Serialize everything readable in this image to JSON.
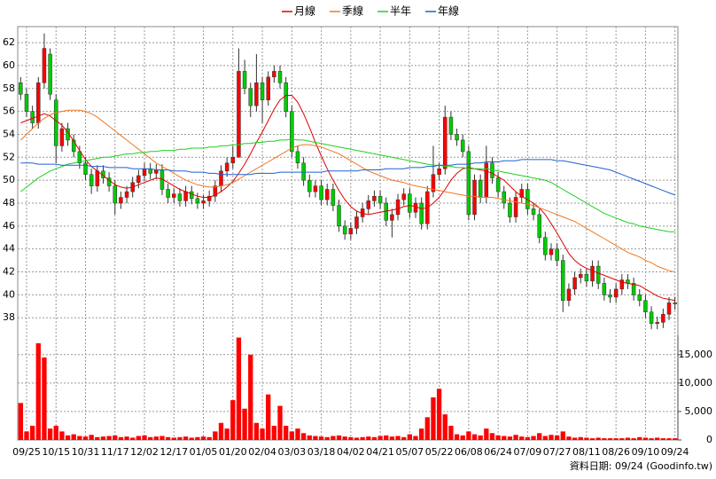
{
  "chart_data": {
    "type": "candlestick",
    "categories": [
      null,
      "09/25",
      null,
      null,
      null,
      null,
      "10/15",
      null,
      null,
      null,
      null,
      "10/31",
      null,
      null,
      null,
      null,
      "11/17",
      null,
      null,
      null,
      null,
      "12/02",
      null,
      null,
      null,
      null,
      "12/17",
      null,
      null,
      null,
      null,
      "01/05",
      null,
      null,
      null,
      null,
      "01/20",
      null,
      null,
      null,
      null,
      "02/04",
      null,
      null,
      null,
      null,
      "03/03",
      null,
      null,
      null,
      null,
      "03/18",
      null,
      null,
      null,
      null,
      "04/02",
      null,
      null,
      null,
      null,
      "04/21",
      null,
      null,
      null,
      null,
      "05/07",
      null,
      null,
      null,
      null,
      "05/22",
      null,
      null,
      null,
      null,
      "06/08",
      null,
      null,
      null,
      null,
      "06/24",
      null,
      null,
      null,
      null,
      "07/09",
      null,
      null,
      null,
      null,
      "07/27",
      null,
      null,
      null,
      null,
      "08/11",
      null,
      null,
      null,
      null,
      "08/26",
      null,
      null,
      null,
      null,
      "09/10",
      null,
      null,
      null,
      null,
      "09/24"
    ],
    "open": [
      58.5,
      57.5,
      56.0,
      55.0,
      58.5,
      61.0,
      57.0,
      53.0,
      54.5,
      53.5,
      52.5,
      51.5,
      50.5,
      49.5,
      50.8,
      50.2,
      49.5,
      48.0,
      48.5,
      49.0,
      49.8,
      50.4,
      51.0,
      50.6,
      50.9,
      49.2,
      48.5,
      48.8,
      48.2,
      49.0,
      48.4,
      48.0,
      48.2,
      48.6,
      49.5,
      50.8,
      51.5,
      52.0,
      59.5,
      58.0,
      56.5,
      58.5,
      57.0,
      59.0,
      59.5,
      58.5,
      56.0,
      52.5,
      51.5,
      50.0,
      49.0,
      49.5,
      48.3,
      49.2,
      47.8,
      46.0,
      45.3,
      45.8,
      46.8,
      47.5,
      48.2,
      48.6,
      48.0,
      46.5,
      47.0,
      48.3,
      48.8,
      47.2,
      48.0,
      46.2,
      49.0,
      50.5,
      51.0,
      55.5,
      54.0,
      53.5,
      52.5,
      47.0,
      50.0,
      48.5,
      51.5,
      50.2,
      49.0,
      48.0,
      46.8,
      48.5,
      49.2,
      47.5,
      47.0,
      45.0,
      43.5,
      44.0,
      43.0,
      39.5,
      40.5,
      41.5,
      41.8,
      41.2,
      42.5,
      41.0,
      40.0,
      39.8,
      40.5,
      41.3,
      41.0,
      40.0,
      39.5,
      38.5,
      37.5,
      37.6,
      38.3,
      39.3
    ],
    "high": [
      59.0,
      58.0,
      56.5,
      59.0,
      62.8,
      61.5,
      57.5,
      55.0,
      55.0,
      54.0,
      53.0,
      52.0,
      51.0,
      51.3,
      51.3,
      50.7,
      50.0,
      49.0,
      49.5,
      50.3,
      50.9,
      51.5,
      51.5,
      51.4,
      51.4,
      49.7,
      49.3,
      49.3,
      49.5,
      49.5,
      48.9,
      48.7,
      49.1,
      50.0,
      51.3,
      52.0,
      53.0,
      61.5,
      60.5,
      58.5,
      61.0,
      59.0,
      59.5,
      60.0,
      60.0,
      59.0,
      56.5,
      53.0,
      52.0,
      50.5,
      50.0,
      50.0,
      49.7,
      49.7,
      48.3,
      46.5,
      46.3,
      47.3,
      48.0,
      48.7,
      49.1,
      49.1,
      48.5,
      47.5,
      48.8,
      49.3,
      49.3,
      48.5,
      48.5,
      49.5,
      53.0,
      51.5,
      56.5,
      56.0,
      54.5,
      54.0,
      53.0,
      50.5,
      50.5,
      53.0,
      52.0,
      50.7,
      49.5,
      48.5,
      49.0,
      49.7,
      49.7,
      48.0,
      47.5,
      45.5,
      44.5,
      44.5,
      43.5,
      41.0,
      42.0,
      42.3,
      42.3,
      43.0,
      43.0,
      41.5,
      40.5,
      41.0,
      41.8,
      41.8,
      41.5,
      40.5,
      40.0,
      39.0,
      38.1,
      38.8,
      39.8,
      39.8
    ],
    "low": [
      57.0,
      55.5,
      54.5,
      54.5,
      58.0,
      57.0,
      51.5,
      52.5,
      53.0,
      52.0,
      51.0,
      50.0,
      48.8,
      49.0,
      49.7,
      49.0,
      47.0,
      47.5,
      48.0,
      48.5,
      49.3,
      49.9,
      50.1,
      50.1,
      48.7,
      48.0,
      48.0,
      47.7,
      47.7,
      47.9,
      47.5,
      47.5,
      47.7,
      48.1,
      49.0,
      50.3,
      51.0,
      52.0,
      57.5,
      55.5,
      56.0,
      55.0,
      56.5,
      58.5,
      58.0,
      55.5,
      52.0,
      51.0,
      49.5,
      48.5,
      48.5,
      47.8,
      47.8,
      47.3,
      45.5,
      44.8,
      44.8,
      45.3,
      46.3,
      47.0,
      47.7,
      47.5,
      46.0,
      45.0,
      46.5,
      47.8,
      46.7,
      46.7,
      45.7,
      45.7,
      48.5,
      50.0,
      50.5,
      53.5,
      53.0,
      52.0,
      46.5,
      46.5,
      48.0,
      48.0,
      49.7,
      48.5,
      47.5,
      46.3,
      46.3,
      48.0,
      47.0,
      46.5,
      44.5,
      43.0,
      43.0,
      42.5,
      38.5,
      39.0,
      40.0,
      41.0,
      40.7,
      40.7,
      40.5,
      39.5,
      39.3,
      39.3,
      40.0,
      40.5,
      39.5,
      39.0,
      38.0,
      37.0,
      37.0,
      37.1,
      37.8,
      38.7
    ],
    "close": [
      57.5,
      56.0,
      55.0,
      58.5,
      61.5,
      57.5,
      53.0,
      54.5,
      53.5,
      52.5,
      51.5,
      50.5,
      49.5,
      50.8,
      50.2,
      49.5,
      48.0,
      48.5,
      49.0,
      49.8,
      50.4,
      51.0,
      50.6,
      50.9,
      49.2,
      48.5,
      48.8,
      48.2,
      49.0,
      48.4,
      48.0,
      48.2,
      48.6,
      49.5,
      50.8,
      51.5,
      52.0,
      59.5,
      58.0,
      56.5,
      58.5,
      57.0,
      59.0,
      59.5,
      58.5,
      56.0,
      52.5,
      51.5,
      50.0,
      49.0,
      49.5,
      48.3,
      49.2,
      47.8,
      46.0,
      45.3,
      45.8,
      46.8,
      47.5,
      48.2,
      48.6,
      48.0,
      46.5,
      47.0,
      48.3,
      48.8,
      47.2,
      48.0,
      46.2,
      49.0,
      50.5,
      51.0,
      55.5,
      54.0,
      53.5,
      52.5,
      47.0,
      50.0,
      48.5,
      51.5,
      50.2,
      49.0,
      48.0,
      46.8,
      48.5,
      49.2,
      47.5,
      47.0,
      45.0,
      43.5,
      44.0,
      43.0,
      39.5,
      40.5,
      41.5,
      41.8,
      41.2,
      42.5,
      41.0,
      40.0,
      39.8,
      40.5,
      41.3,
      41.0,
      40.0,
      39.5,
      38.5,
      37.5,
      37.6,
      38.3,
      39.3,
      39.2
    ],
    "up_color": "#ff0000",
    "down_color": "#00cc00",
    "wick_color": "#333333",
    "ylim": [
      36.7,
      63.4
    ],
    "yticks": [
      38,
      40,
      42,
      44,
      46,
      48,
      50,
      52,
      54,
      56,
      58,
      60,
      62
    ],
    "grid": true,
    "series": [
      {
        "name": "月線",
        "color": "#e00000",
        "values": [
          55.0,
          55.2,
          55.4,
          55.6,
          55.8,
          55.6,
          55.2,
          54.8,
          54.2,
          53.4,
          52.6,
          51.8,
          51.2,
          50.8,
          50.4,
          50.0,
          49.6,
          49.4,
          49.3,
          49.4,
          49.6,
          49.8,
          50.0,
          50.2,
          50.1,
          49.8,
          49.5,
          49.2,
          49.0,
          48.8,
          48.6,
          48.5,
          48.5,
          48.7,
          49.0,
          49.4,
          49.9,
          50.6,
          51.4,
          52.3,
          53.3,
          54.2,
          55.2,
          56.2,
          57.0,
          57.4,
          57.4,
          56.8,
          55.8,
          54.6,
          53.3,
          52.1,
          51.0,
          50.0,
          49.1,
          48.3,
          47.7,
          47.3,
          47.1,
          47.0,
          47.1,
          47.2,
          47.3,
          47.4,
          47.5,
          47.7,
          47.8,
          47.7,
          47.5,
          47.6,
          48.0,
          48.5,
          49.2,
          50.0,
          50.6,
          51.0,
          51.1,
          51.0,
          50.9,
          50.8,
          50.6,
          50.3,
          50.0,
          49.5,
          49.0,
          48.6,
          48.3,
          48.0,
          47.6,
          47.0,
          46.2,
          45.4,
          44.5,
          43.6,
          43.0,
          42.6,
          42.3,
          42.1,
          41.9,
          41.7,
          41.5,
          41.3,
          41.1,
          41.0,
          40.9,
          40.8,
          40.5,
          40.2,
          39.9,
          39.7,
          39.6,
          39.5
        ]
      },
      {
        "name": "季線",
        "color": "#f07820",
        "values": [
          53.5,
          54.0,
          54.5,
          55.0,
          55.4,
          55.7,
          55.9,
          56.0,
          56.1,
          56.1,
          56.1,
          56.0,
          55.8,
          55.5,
          55.1,
          54.7,
          54.3,
          53.9,
          53.5,
          53.1,
          52.7,
          52.3,
          51.9,
          51.5,
          51.2,
          50.9,
          50.6,
          50.3,
          50.0,
          49.8,
          49.6,
          49.5,
          49.4,
          49.4,
          49.5,
          49.6,
          49.8,
          50.1,
          50.4,
          50.7,
          51.0,
          51.3,
          51.6,
          51.9,
          52.2,
          52.5,
          52.8,
          53.0,
          53.1,
          53.1,
          53.0,
          52.9,
          52.7,
          52.5,
          52.3,
          52.0,
          51.7,
          51.4,
          51.1,
          50.8,
          50.6,
          50.4,
          50.2,
          50.0,
          49.9,
          49.8,
          49.6,
          49.5,
          49.4,
          49.3,
          49.2,
          49.1,
          49.0,
          48.9,
          48.8,
          48.7,
          48.6,
          48.6,
          48.5,
          48.5,
          48.5,
          48.4,
          48.3,
          48.2,
          48.1,
          48.0,
          47.9,
          47.8,
          47.6,
          47.4,
          47.2,
          47.0,
          46.8,
          46.6,
          46.4,
          46.1,
          45.8,
          45.5,
          45.2,
          44.9,
          44.6,
          44.3,
          44.0,
          43.7,
          43.5,
          43.3,
          43.0,
          42.8,
          42.5,
          42.3,
          42.1,
          42.0
        ]
      },
      {
        "name": "半年",
        "color": "#20d020",
        "values": [
          49.0,
          49.4,
          49.8,
          50.2,
          50.5,
          50.8,
          51.0,
          51.2,
          51.4,
          51.5,
          51.6,
          51.7,
          51.8,
          51.9,
          52.0,
          52.0,
          52.1,
          52.2,
          52.3,
          52.3,
          52.4,
          52.4,
          52.5,
          52.5,
          52.6,
          52.6,
          52.6,
          52.7,
          52.7,
          52.8,
          52.8,
          52.8,
          52.9,
          52.9,
          53.0,
          53.0,
          53.1,
          53.1,
          53.2,
          53.2,
          53.3,
          53.3,
          53.4,
          53.4,
          53.5,
          53.5,
          53.6,
          53.5,
          53.5,
          53.4,
          53.3,
          53.2,
          53.1,
          53.0,
          52.9,
          52.8,
          52.7,
          52.6,
          52.5,
          52.4,
          52.3,
          52.2,
          52.1,
          52.0,
          51.9,
          51.8,
          51.7,
          51.6,
          51.5,
          51.4,
          51.3,
          51.3,
          51.2,
          51.2,
          51.1,
          51.1,
          51.0,
          51.0,
          51.0,
          51.0,
          50.9,
          50.8,
          50.7,
          50.6,
          50.5,
          50.4,
          50.3,
          50.2,
          50.1,
          50.0,
          49.8,
          49.5,
          49.2,
          48.9,
          48.6,
          48.3,
          48.0,
          47.7,
          47.4,
          47.1,
          46.9,
          46.7,
          46.5,
          46.3,
          46.2,
          46.0,
          45.9,
          45.8,
          45.7,
          45.6,
          45.5,
          45.5
        ]
      },
      {
        "name": "年線",
        "color": "#2060d0",
        "values": [
          51.5,
          51.5,
          51.5,
          51.4,
          51.4,
          51.4,
          51.4,
          51.3,
          51.3,
          51.3,
          51.3,
          51.3,
          51.2,
          51.2,
          51.2,
          51.1,
          51.1,
          51.1,
          51.1,
          51.0,
          51.0,
          51.0,
          51.0,
          50.9,
          50.9,
          50.9,
          50.8,
          50.8,
          50.8,
          50.7,
          50.7,
          50.7,
          50.6,
          50.6,
          50.5,
          50.5,
          50.5,
          50.5,
          50.5,
          50.5,
          50.6,
          50.6,
          50.6,
          50.6,
          50.7,
          50.7,
          50.7,
          50.7,
          50.7,
          50.7,
          50.7,
          50.7,
          50.8,
          50.8,
          50.8,
          50.8,
          50.8,
          50.8,
          50.9,
          50.9,
          50.9,
          50.9,
          51.0,
          51.0,
          51.0,
          51.0,
          51.1,
          51.1,
          51.1,
          51.2,
          51.2,
          51.3,
          51.3,
          51.3,
          51.4,
          51.4,
          51.4,
          51.5,
          51.5,
          51.6,
          51.6,
          51.6,
          51.7,
          51.7,
          51.7,
          51.8,
          51.8,
          51.8,
          51.8,
          51.8,
          51.8,
          51.7,
          51.7,
          51.6,
          51.5,
          51.4,
          51.3,
          51.2,
          51.1,
          51.0,
          50.9,
          50.7,
          50.5,
          50.3,
          50.1,
          49.9,
          49.7,
          49.5,
          49.3,
          49.1,
          48.9,
          48.7
        ]
      }
    ],
    "volume": {
      "color": "#ff0000",
      "ylim": [
        0,
        18400
      ],
      "yticks": [
        0,
        {
          "value": 5000,
          "label": "5,000"
        },
        {
          "value": 10000,
          "label": "10,000"
        },
        {
          "value": 15000,
          "label": "15,000"
        }
      ],
      "values": [
        6500,
        1500,
        2500,
        17000,
        14500,
        2000,
        2500,
        1500,
        800,
        1000,
        700,
        600,
        900,
        500,
        600,
        700,
        800,
        500,
        600,
        400,
        700,
        800,
        500,
        600,
        700,
        500,
        400,
        500,
        600,
        400,
        500,
        600,
        500,
        1500,
        3000,
        2000,
        7000,
        18000,
        5500,
        15000,
        3000,
        2000,
        8000,
        2500,
        6000,
        2500,
        1500,
        2000,
        1200,
        800,
        700,
        600,
        500,
        700,
        800,
        600,
        500,
        400,
        500,
        600,
        500,
        700,
        800,
        600,
        700,
        500,
        1000,
        700,
        2000,
        4000,
        7500,
        9000,
        4500,
        2500,
        1000,
        800,
        1500,
        1000,
        800,
        2000,
        1200,
        800,
        700,
        600,
        900,
        600,
        500,
        700,
        1200,
        700,
        900,
        800,
        1500,
        600,
        400,
        500,
        400,
        300,
        400,
        300,
        300,
        300,
        300,
        400,
        300,
        500,
        400,
        300,
        400,
        300,
        300,
        300
      ]
    },
    "footer": "資料日期: 09/24  (Goodinfo.tw)"
  }
}
